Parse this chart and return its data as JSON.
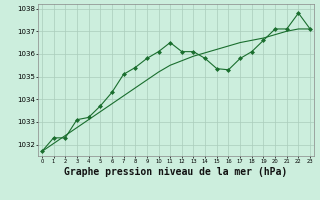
{
  "title": "Graphe pression niveau de la mer (hPa)",
  "background_color": "#cceedd",
  "grid_color": "#aaccbb",
  "line_color": "#1a6e2e",
  "marker_color": "#1a6e2e",
  "x_values": [
    0,
    1,
    2,
    3,
    4,
    5,
    6,
    7,
    8,
    9,
    10,
    11,
    12,
    13,
    14,
    15,
    16,
    17,
    18,
    19,
    20,
    21,
    22,
    23
  ],
  "series_marker": [
    1031.7,
    1032.3,
    1032.3,
    1033.1,
    1033.2,
    1033.7,
    1034.3,
    1035.1,
    1035.4,
    1035.8,
    1036.1,
    1036.5,
    1036.1,
    1036.1,
    1035.8,
    1035.35,
    1035.3,
    1035.8,
    1036.1,
    1036.6,
    1037.1,
    1037.1,
    1037.8,
    1037.1
  ],
  "series_smooth": [
    1031.7,
    1032.05,
    1032.4,
    1032.75,
    1033.1,
    1033.45,
    1033.8,
    1034.15,
    1034.5,
    1034.85,
    1035.2,
    1035.5,
    1035.7,
    1035.9,
    1036.05,
    1036.2,
    1036.35,
    1036.5,
    1036.6,
    1036.7,
    1036.85,
    1037.0,
    1037.1,
    1037.1
  ],
  "ylim": [
    1031.5,
    1038.2
  ],
  "yticks": [
    1032,
    1033,
    1034,
    1035,
    1036,
    1037,
    1038
  ],
  "xlim": [
    -0.3,
    23.3
  ],
  "title_fontsize": 7.0
}
